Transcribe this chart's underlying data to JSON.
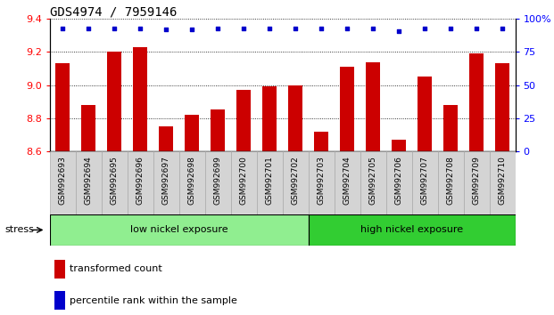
{
  "title": "GDS4974 / 7959146",
  "samples": [
    "GSM992693",
    "GSM992694",
    "GSM992695",
    "GSM992696",
    "GSM992697",
    "GSM992698",
    "GSM992699",
    "GSM992700",
    "GSM992701",
    "GSM992702",
    "GSM992703",
    "GSM992704",
    "GSM992705",
    "GSM992706",
    "GSM992707",
    "GSM992708",
    "GSM992709",
    "GSM992710"
  ],
  "bar_values": [
    9.13,
    8.88,
    9.2,
    9.23,
    8.75,
    8.82,
    8.85,
    8.97,
    8.99,
    9.0,
    8.72,
    9.11,
    9.14,
    8.67,
    9.05,
    8.88,
    9.19,
    9.13
  ],
  "percentile_values": [
    93,
    93,
    93,
    93,
    92,
    92,
    93,
    93,
    93,
    93,
    93,
    93,
    93,
    91,
    93,
    93,
    93,
    93
  ],
  "ylim_left": [
    8.6,
    9.4
  ],
  "ylim_right": [
    0,
    100
  ],
  "yticks_left": [
    8.6,
    8.8,
    9.0,
    9.2,
    9.4
  ],
  "yticks_right": [
    0,
    25,
    50,
    75,
    100
  ],
  "bar_color": "#cc0000",
  "percentile_color": "#0000cc",
  "low_n": 10,
  "high_n": 8,
  "low_nickel_label": "low nickel exposure",
  "high_nickel_label": "high nickel exposure",
  "low_nickel_color": "#90ee90",
  "high_nickel_color": "#32cd32",
  "group_label": "stress",
  "legend_bar_label": "transformed count",
  "legend_pct_label": "percentile rank within the sample",
  "plot_bg": "#ffffff",
  "title_fontsize": 10,
  "cell_bg": "#d4d4d4"
}
